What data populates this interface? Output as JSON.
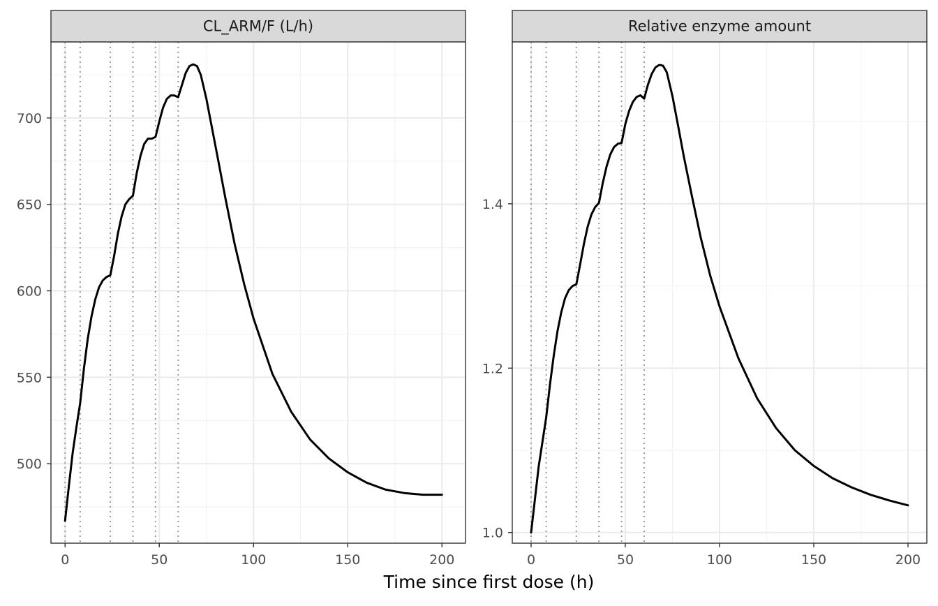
{
  "x_axis_title": "Time since first dose (h)",
  "colors": {
    "line": "#000000",
    "strip_fill": "#d9d9d9",
    "grid_major": "#ebebeb",
    "grid_minor": "#f3f3f3",
    "dose_line": "#999999",
    "panel_border": "#333333"
  },
  "chart_data": [
    {
      "type": "line",
      "panel": "CL_ARM/F (L/h)",
      "xlabel": "Time since first dose (h)",
      "ylabel": "",
      "xlim": [
        -7.5,
        212.5
      ],
      "ylim": [
        454,
        744
      ],
      "xticks": [
        0,
        50,
        100,
        150,
        200
      ],
      "xtick_labels": [
        "0",
        "50",
        "100",
        "150",
        "200"
      ],
      "yticks": [
        500,
        550,
        600,
        650,
        700
      ],
      "ytick_labels": [
        "500",
        "550",
        "600",
        "650",
        "700"
      ],
      "grid": true,
      "dose_times": [
        0,
        8,
        24,
        36,
        48,
        60
      ],
      "x": [
        0,
        2,
        4,
        6,
        8,
        10,
        12,
        14,
        16,
        18,
        20,
        22,
        24,
        26,
        28,
        30,
        32,
        34,
        36,
        38,
        40,
        42,
        44,
        46,
        48,
        50,
        52,
        54,
        56,
        58,
        60,
        62,
        64,
        66,
        68,
        70,
        72,
        75,
        78,
        81,
        85,
        90,
        95,
        100,
        110,
        120,
        130,
        140,
        150,
        160,
        170,
        180,
        190,
        200
      ],
      "y": [
        467,
        487,
        506,
        521,
        535,
        555,
        572,
        585,
        595,
        602,
        606,
        608,
        609,
        620,
        633,
        643,
        650,
        653,
        655,
        668,
        678,
        685,
        688,
        688,
        689,
        698,
        706,
        711,
        713,
        713,
        712,
        719,
        726,
        730,
        731,
        730,
        725,
        711,
        694,
        677,
        654,
        627,
        604,
        584,
        552,
        530,
        514,
        503,
        495,
        489,
        485,
        483,
        482,
        482
      ]
    },
    {
      "type": "line",
      "panel": "Relative enzyme amount",
      "xlabel": "Time since first dose (h)",
      "ylabel": "",
      "xlim": [
        -10,
        210
      ],
      "ylim": [
        0.987,
        1.597
      ],
      "xticks": [
        0,
        50,
        100,
        150,
        200
      ],
      "xtick_labels": [
        "0",
        "50",
        "100",
        "150",
        "200"
      ],
      "yticks": [
        1.0,
        1.2,
        1.4
      ],
      "ytick_labels": [
        "1.0",
        "1.2",
        "1.4"
      ],
      "grid": true,
      "dose_times": [
        0,
        8,
        24,
        36,
        48,
        60
      ],
      "x": [
        0,
        2,
        4,
        6,
        8,
        10,
        12,
        14,
        16,
        18,
        20,
        22,
        24,
        26,
        28,
        30,
        32,
        34,
        36,
        38,
        40,
        42,
        44,
        46,
        48,
        50,
        52,
        54,
        56,
        58,
        60,
        62,
        64,
        66,
        68,
        70,
        72,
        75,
        78,
        81,
        85,
        90,
        95,
        100,
        110,
        120,
        130,
        140,
        150,
        160,
        170,
        180,
        190,
        200
      ],
      "y": [
        1.0,
        1.04,
        1.08,
        1.11,
        1.14,
        1.18,
        1.215,
        1.245,
        1.268,
        1.285,
        1.295,
        1.3,
        1.302,
        1.326,
        1.351,
        1.372,
        1.387,
        1.396,
        1.401,
        1.425,
        1.445,
        1.46,
        1.469,
        1.473,
        1.474,
        1.497,
        1.513,
        1.524,
        1.53,
        1.532,
        1.528,
        1.545,
        1.558,
        1.566,
        1.569,
        1.568,
        1.56,
        1.531,
        1.495,
        1.458,
        1.413,
        1.359,
        1.313,
        1.275,
        1.212,
        1.163,
        1.127,
        1.1,
        1.081,
        1.066,
        1.055,
        1.046,
        1.039,
        1.033
      ]
    }
  ]
}
